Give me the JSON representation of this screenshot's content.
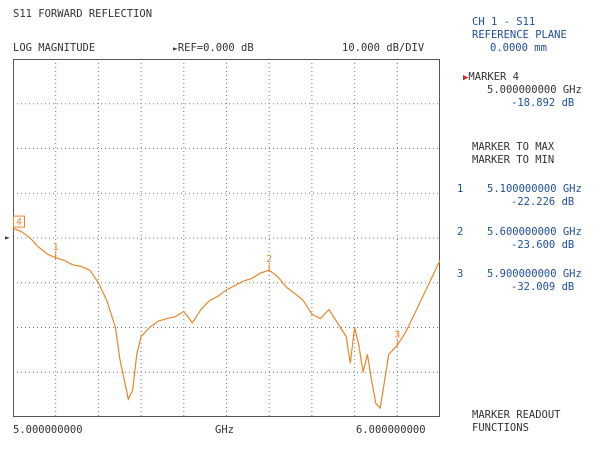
{
  "screen": {
    "title": "S11 FORWARD REFLECTION",
    "format": "LOG MAGNITUDE",
    "reference": "REF=0.000 dB",
    "scale": "10.000 dB/DIV",
    "start_freq": "5.000000000",
    "freq_unit": "GHz",
    "stop_freq": "6.000000000"
  },
  "panel": {
    "channel": "CH 1 - S11",
    "ref_plane_label": "REFERENCE PLANE",
    "ref_plane_value": "0.0000 mm",
    "active_marker_label": "MARKER 4",
    "active_marker_freq": "5.000000000 GHz",
    "active_marker_value": "-18.892 dB",
    "marker_to_max": "MARKER TO MAX",
    "marker_to_min": "MARKER TO MIN",
    "markers": [
      {
        "num": "1",
        "freq": "5.100000000 GHz",
        "value": "-22.226 dB"
      },
      {
        "num": "2",
        "freq": "5.600000000 GHz",
        "value": "-23.600 dB"
      },
      {
        "num": "3",
        "freq": "5.900000000 GHz",
        "value": "-32.009 dB"
      }
    ],
    "readout_1": "MARKER READOUT",
    "readout_2": "FUNCTIONS"
  },
  "chart_data": {
    "type": "line",
    "x_unit": "GHz",
    "xlim": [
      5.0,
      6.0
    ],
    "y_unit": "dB",
    "ylim": [
      -40,
      0
    ],
    "y_divisions": 8,
    "x_divisions": 10,
    "grid": true,
    "trace_color": "#e8862a",
    "series": [
      {
        "x": [
          5.0,
          5.02,
          5.04,
          5.06,
          5.08,
          5.1,
          5.12,
          5.14,
          5.16,
          5.18,
          5.2,
          5.22,
          5.24,
          5.25,
          5.27,
          5.28,
          5.29,
          5.3,
          5.31,
          5.32,
          5.34,
          5.36,
          5.38,
          5.4,
          5.42,
          5.44,
          5.46,
          5.48,
          5.5,
          5.52,
          5.54,
          5.56,
          5.58,
          5.6,
          5.62,
          5.64,
          5.66,
          5.68,
          5.7,
          5.72,
          5.74,
          5.76,
          5.78,
          5.79,
          5.8,
          5.81,
          5.82,
          5.83,
          5.84,
          5.85,
          5.86,
          5.87,
          5.88,
          5.9,
          5.92,
          5.94,
          5.96,
          5.98,
          6.0
        ],
        "y": [
          -18.9,
          -19.3,
          -20.0,
          -21.0,
          -21.8,
          -22.2,
          -22.5,
          -23.0,
          -23.2,
          -23.6,
          -25.0,
          -27.0,
          -30.0,
          -33.5,
          -38.0,
          -37.0,
          -33.0,
          -31.0,
          -30.5,
          -30.0,
          -29.3,
          -29.0,
          -28.8,
          -28.2,
          -29.5,
          -28.0,
          -27.0,
          -26.5,
          -25.8,
          -25.3,
          -24.8,
          -24.5,
          -23.9,
          -23.6,
          -24.3,
          -25.5,
          -26.2,
          -27.0,
          -28.5,
          -29.0,
          -28.0,
          -29.5,
          -31.0,
          -34.0,
          -30.0,
          -32.0,
          -35.0,
          -33.0,
          -36.0,
          -38.5,
          -39.0,
          -36.0,
          -33.0,
          -32.0,
          -30.5,
          -28.5,
          -26.5,
          -24.5,
          -22.5
        ]
      }
    ],
    "markers": [
      {
        "label": "4",
        "x": 5.0,
        "y": -18.892
      },
      {
        "label": "1",
        "x": 5.1,
        "y": -22.226
      },
      {
        "label": "2",
        "x": 5.6,
        "y": -23.6
      },
      {
        "label": "3",
        "x": 5.9,
        "y": -32.009
      }
    ]
  }
}
